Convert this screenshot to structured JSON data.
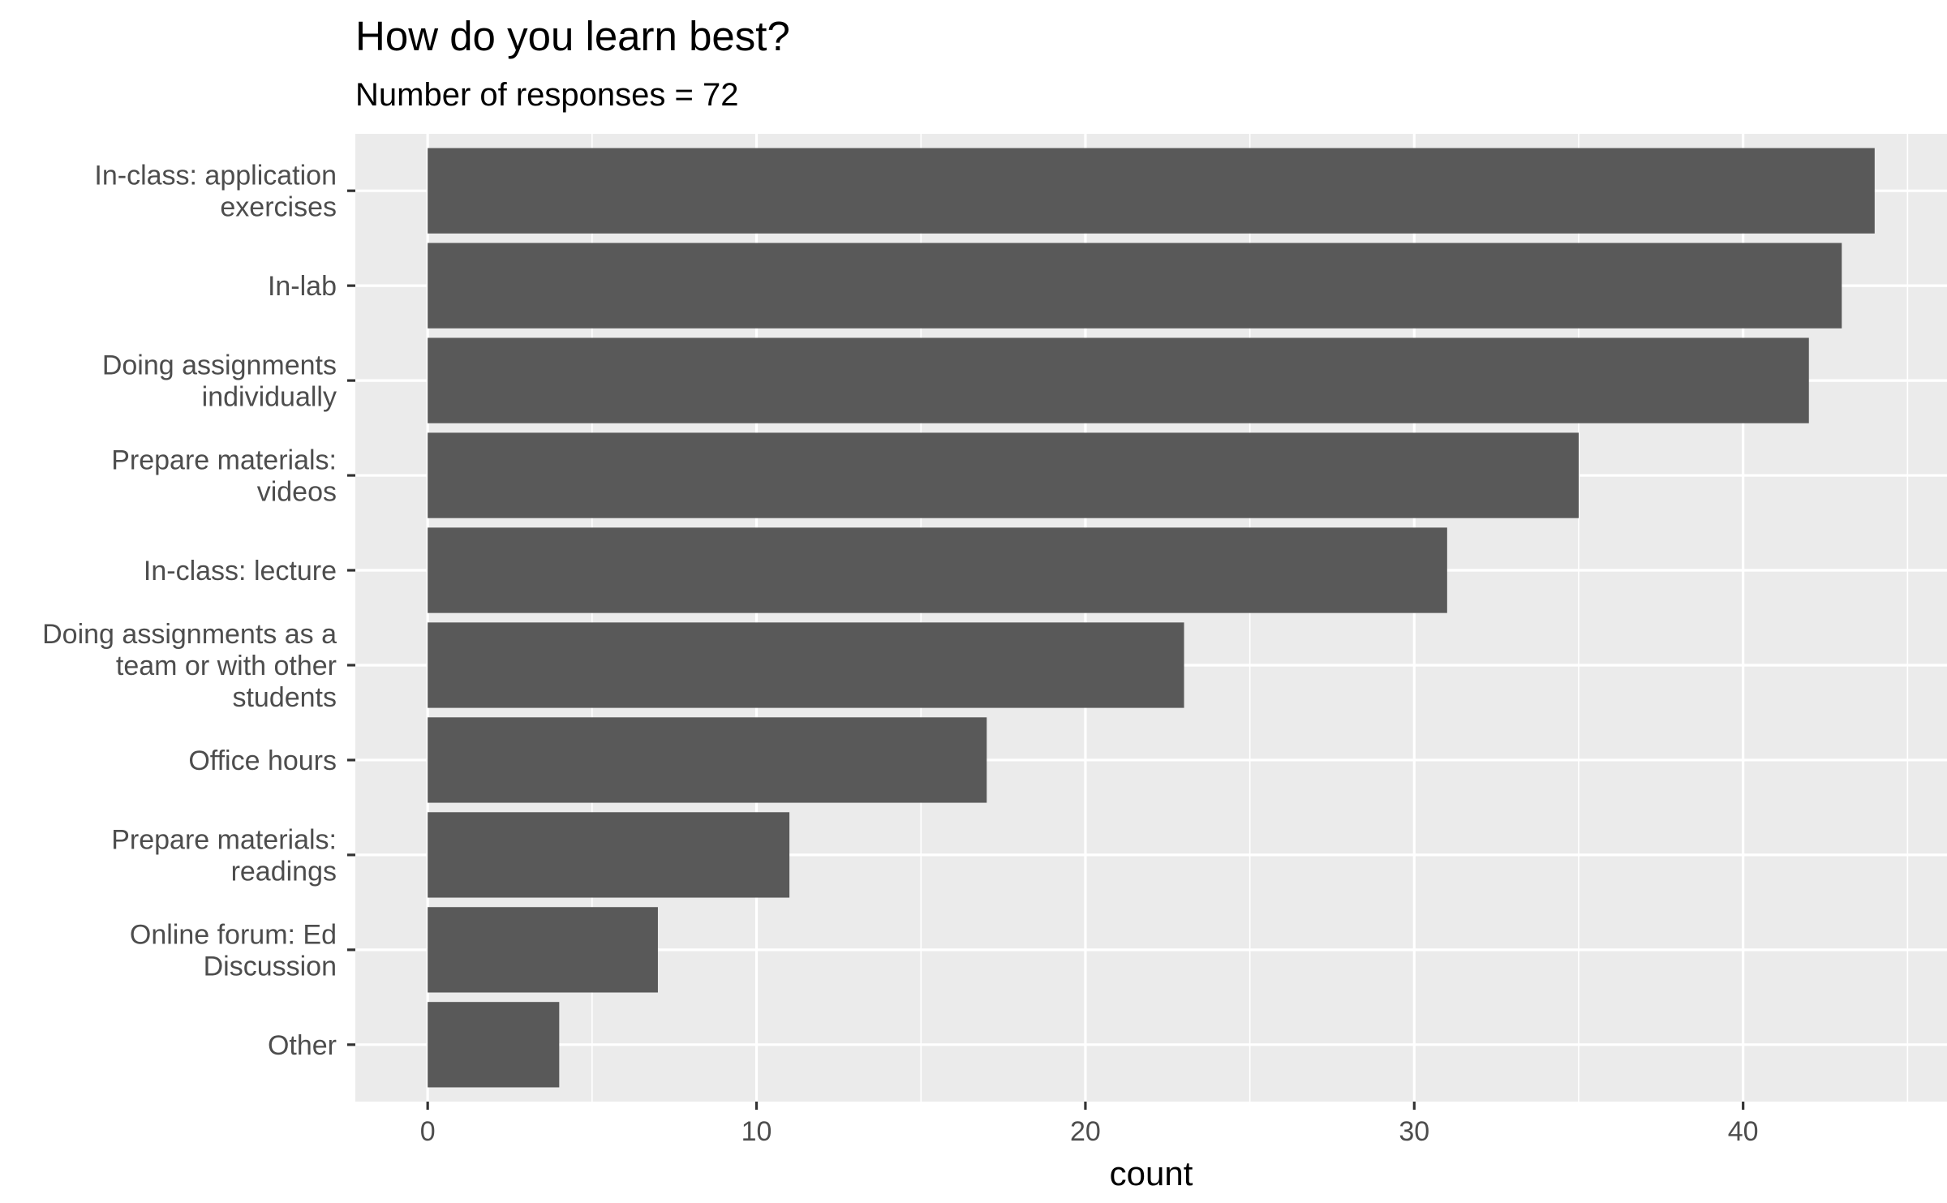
{
  "chart_data": {
    "type": "bar",
    "orientation": "horizontal",
    "title": "How do you learn best?",
    "subtitle": "Number of responses = 72",
    "xlabel": "count",
    "ylabel": "",
    "xlim": [
      -2.2,
      46.2
    ],
    "x_ticks": [
      0,
      10,
      20,
      30,
      40
    ],
    "x_tick_labels": [
      "0",
      "10",
      "20",
      "30",
      "40"
    ],
    "grid": true,
    "legend": "none",
    "categories": [
      [
        "In-class: application",
        "exercises"
      ],
      [
        "In-lab"
      ],
      [
        "Doing assignments",
        "individually"
      ],
      [
        "Prepare materials:",
        "videos"
      ],
      [
        "In-class: lecture"
      ],
      [
        "Doing assignments as a",
        "team or with other",
        "students"
      ],
      [
        "Office hours"
      ],
      [
        "Prepare materials:",
        "readings"
      ],
      [
        "Online forum: Ed",
        "Discussion"
      ],
      [
        "Other"
      ]
    ],
    "values": [
      44,
      43,
      42,
      35,
      31,
      23,
      17,
      11,
      7,
      4
    ],
    "colors": {
      "bar": "#595959",
      "panel": "#ebebeb",
      "grid": "#ffffff",
      "tick_text": "#4d4d4d",
      "tick_mark": "#333333"
    }
  }
}
